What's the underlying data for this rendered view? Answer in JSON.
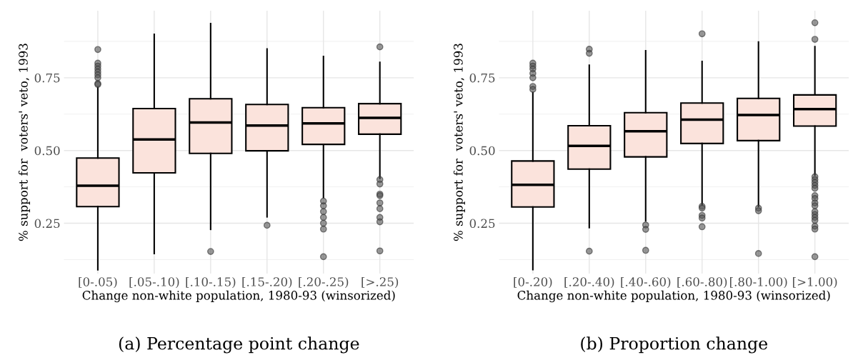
{
  "chart_data": [
    {
      "type": "box",
      "title": "(a) Percentage point change",
      "xlabel": "Change non-white population, 1980-93 (winsorized)",
      "ylabel": "% support for  voters' veto, 1993",
      "color": "#fbe3dc",
      "grid": true,
      "ylim": [
        0.077,
        0.98
      ],
      "yticks": [
        {
          "value": 0.25,
          "label": "0.25"
        },
        {
          "value": 0.5,
          "label": "0.50"
        },
        {
          "value": 0.75,
          "label": "0.75"
        }
      ],
      "categories": [
        "[0-.05)",
        "[.05-.10)",
        "[.10-.15)",
        "[.15-.20)",
        "[.20-.25)",
        "[>.25)"
      ],
      "boxes": [
        {
          "low": 0.09,
          "q1": 0.307,
          "median": 0.379,
          "q3": 0.474,
          "high": 0.717,
          "outliers": [
            0.847,
            0.8,
            0.79,
            0.78,
            0.77,
            0.76,
            0.75,
            0.73,
            0.727
          ]
        },
        {
          "low": 0.146,
          "q1": 0.423,
          "median": 0.538,
          "q3": 0.644,
          "high": 0.899
        },
        {
          "low": 0.229,
          "q1": 0.49,
          "median": 0.596,
          "q3": 0.678,
          "high": 0.936,
          "outliers": [
            0.153
          ]
        },
        {
          "low": 0.272,
          "q1": 0.499,
          "median": 0.586,
          "q3": 0.658,
          "high": 0.849,
          "outliers": [
            0.243
          ]
        },
        {
          "low": 0.338,
          "q1": 0.521,
          "median": 0.593,
          "q3": 0.647,
          "high": 0.823,
          "outliers": [
            0.326,
            0.31,
            0.29,
            0.27,
            0.25,
            0.23,
            0.135
          ]
        },
        {
          "low": 0.404,
          "q1": 0.556,
          "median": 0.612,
          "q3": 0.661,
          "high": 0.803,
          "outliers": [
            0.856,
            0.4,
            0.385,
            0.35,
            0.345,
            0.32,
            0.3,
            0.27,
            0.255,
            0.155
          ]
        }
      ]
    },
    {
      "type": "box",
      "title": "(b) Proportion change",
      "xlabel": "Change non-white population, 1980-93 (winsorized)",
      "ylabel": "% support for  voters' veto, 1993",
      "color": "#fbe3dc",
      "grid": true,
      "ylim": [
        0.077,
        0.98
      ],
      "yticks": [
        {
          "value": 0.25,
          "label": "0.25"
        },
        {
          "value": 0.5,
          "label": "0.50"
        },
        {
          "value": 0.75,
          "label": "0.75"
        }
      ],
      "categories": [
        "[0-.20)",
        "[.20-.40)",
        "[.40-.60)",
        "[.60-.80)",
        "[.80-1.00)",
        "[>1.00)"
      ],
      "boxes": [
        {
          "low": 0.091,
          "q1": 0.306,
          "median": 0.382,
          "q3": 0.464,
          "high": 0.699,
          "outliers": [
            0.8,
            0.79,
            0.78,
            0.765,
            0.75,
            0.72,
            0.71
          ]
        },
        {
          "low": 0.235,
          "q1": 0.436,
          "median": 0.516,
          "q3": 0.585,
          "high": 0.793,
          "outliers": [
            0.848,
            0.834,
            0.154
          ]
        },
        {
          "low": 0.258,
          "q1": 0.478,
          "median": 0.566,
          "q3": 0.63,
          "high": 0.843,
          "outliers": [
            0.244,
            0.229,
            0.157
          ]
        },
        {
          "low": 0.314,
          "q1": 0.524,
          "median": 0.606,
          "q3": 0.663,
          "high": 0.806,
          "outliers": [
            0.901,
            0.308,
            0.302,
            0.277,
            0.268,
            0.238
          ]
        },
        {
          "low": 0.308,
          "q1": 0.534,
          "median": 0.622,
          "q3": 0.679,
          "high": 0.873,
          "outliers": [
            0.302,
            0.293,
            0.146
          ]
        },
        {
          "low": 0.416,
          "q1": 0.584,
          "median": 0.642,
          "q3": 0.691,
          "high": 0.857,
          "outliers": [
            0.939,
            0.882,
            0.41,
            0.4,
            0.39,
            0.38,
            0.37,
            0.345,
            0.335,
            0.32,
            0.31,
            0.29,
            0.28,
            0.27,
            0.26,
            0.24,
            0.23,
            0.135
          ]
        }
      ]
    }
  ]
}
